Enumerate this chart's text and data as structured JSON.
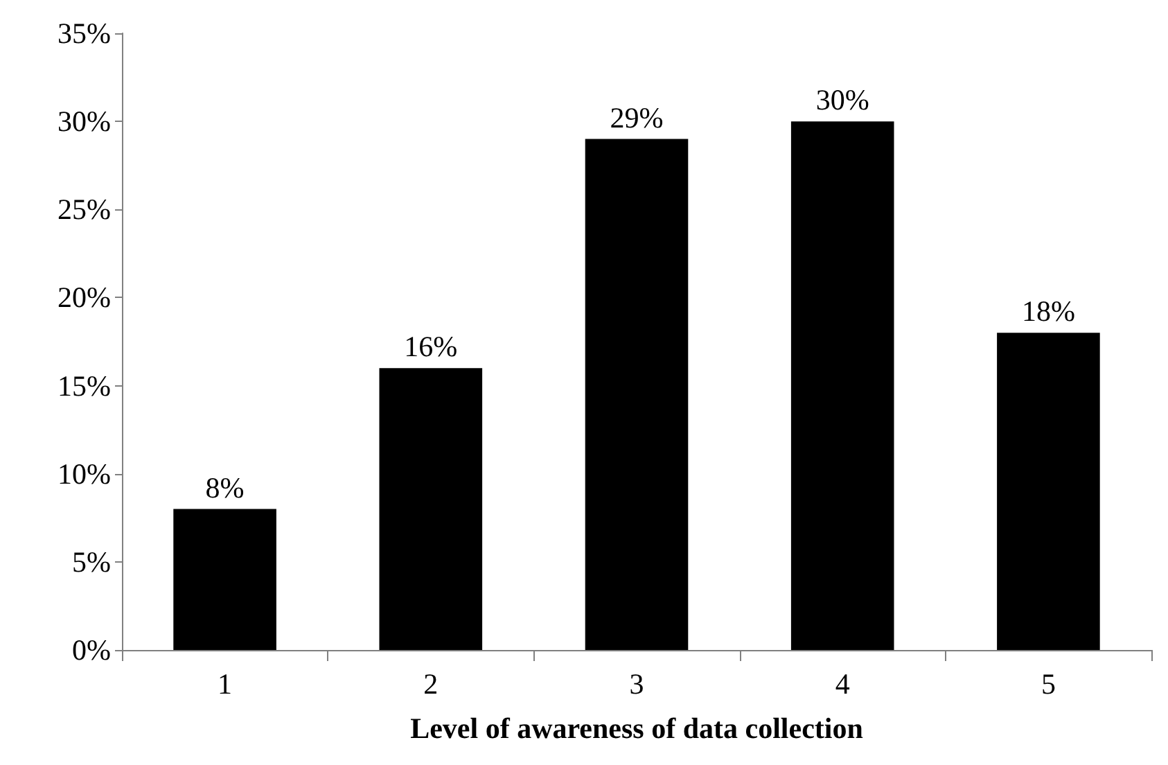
{
  "chart_data": {
    "type": "bar",
    "xlabel": "Level of awareness of data collection",
    "categories": [
      "1",
      "2",
      "3",
      "4",
      "5"
    ],
    "values": [
      8,
      16,
      29,
      30,
      18
    ],
    "color": "#000000",
    "value_labels": [
      "8%",
      "16%",
      "29%",
      "30%",
      "18%"
    ],
    "ylim": [
      0,
      35
    ],
    "yticks": [
      {
        "value": 0,
        "label": "0%"
      },
      {
        "value": 5,
        "label": "5%"
      },
      {
        "value": 10,
        "label": "10%"
      },
      {
        "value": 15,
        "label": "15%"
      },
      {
        "value": 20,
        "label": "20%"
      },
      {
        "value": 25,
        "label": "25%"
      },
      {
        "value": 30,
        "label": "30%"
      },
      {
        "value": 35,
        "label": "35%"
      }
    ],
    "grid": false
  }
}
